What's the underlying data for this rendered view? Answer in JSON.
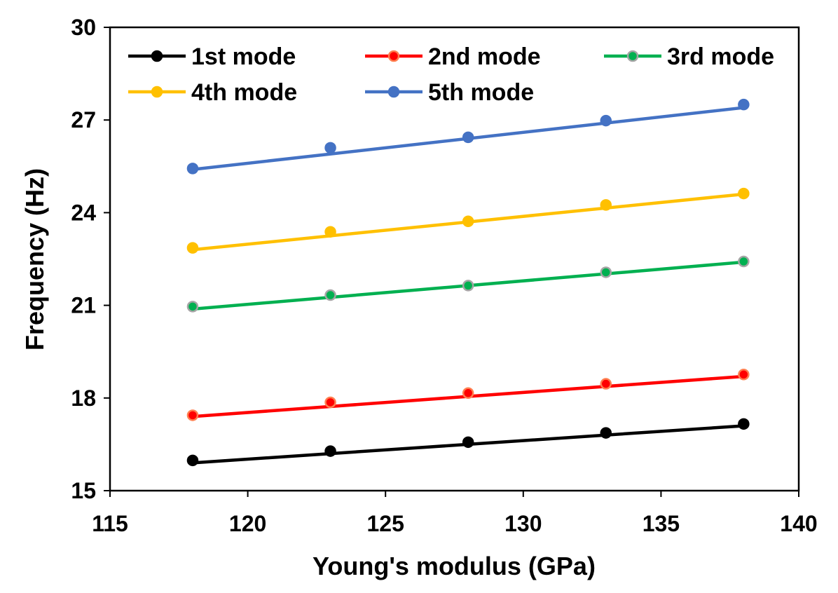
{
  "chart_data": {
    "type": "line",
    "xlabel": "Young's  modulus (GPa)",
    "ylabel": "Frequency (Hz)",
    "xlim": [
      115,
      140
    ],
    "ylim": [
      15,
      30
    ],
    "xticks": [
      115,
      120,
      125,
      130,
      135,
      140
    ],
    "yticks": [
      15,
      18,
      21,
      24,
      27,
      30
    ],
    "x": [
      118,
      123,
      128,
      133,
      138
    ],
    "series": [
      {
        "name": "1st mode",
        "color": "#000000",
        "marker_edge": "#000000",
        "points": [
          15.98,
          16.28,
          16.57,
          16.87,
          17.16
        ],
        "fit": [
          15.9,
          17.1
        ]
      },
      {
        "name": "2nd mode",
        "color": "#ff0000",
        "marker_edge": "#ff7f50",
        "points": [
          17.44,
          17.86,
          18.16,
          18.46,
          18.76
        ],
        "fit": [
          17.4,
          18.7
        ]
      },
      {
        "name": "3rd mode",
        "color": "#00b050",
        "marker_edge": "#a5a5a5",
        "points": [
          20.96,
          21.33,
          21.64,
          22.07,
          22.42
        ],
        "fit": [
          20.88,
          22.4
        ]
      },
      {
        "name": "4th mode",
        "color": "#ffc000",
        "marker_edge": "#ffc000",
        "points": [
          22.86,
          23.38,
          23.72,
          24.25,
          24.62
        ],
        "fit": [
          22.8,
          24.6
        ]
      },
      {
        "name": "5th mode",
        "color": "#4472c4",
        "marker_edge": "#4472c4",
        "points": [
          25.43,
          26.1,
          26.44,
          26.98,
          27.5
        ],
        "fit": [
          25.4,
          27.4
        ]
      }
    ]
  }
}
